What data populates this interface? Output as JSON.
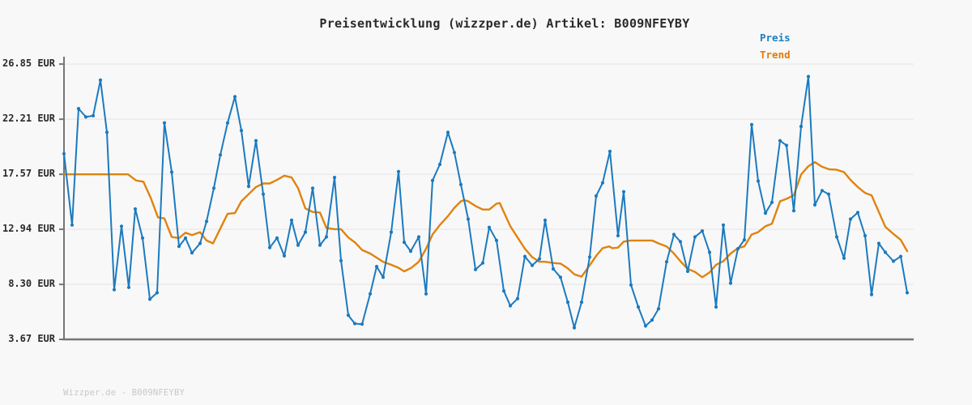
{
  "title": "Preisentwicklung (wizzper.de) Artikel: B009NFEYBY",
  "legend": [
    {
      "label": "Preis",
      "color": "#1b7ec3"
    },
    {
      "label": "Trend",
      "color": "#e07c00"
    }
  ],
  "footer": "Wizzper.de - B009NFEYBY",
  "colors": {
    "background": "#f8f8f8",
    "grid": "#e4e4e4",
    "axis": "#757575",
    "price_line": "#1b7abf",
    "trend_line": "#e0830e",
    "text": "#2a2a2a",
    "footer_text": "#c8c8c8"
  },
  "chart_data": {
    "type": "line",
    "title": "Preisentwicklung (wizzper.de) Artikel: B009NFEYBY",
    "xlabel": "",
    "ylabel": "EUR",
    "ylim": [
      3.67,
      26.85
    ],
    "grid": "horizontal",
    "legend_position": "top-right",
    "x_axis_tick_labels": "none",
    "y_ticks": [
      {
        "value": 26.85,
        "label": "26.85 EUR"
      },
      {
        "value": 22.21,
        "label": "22.21 EUR"
      },
      {
        "value": 17.57,
        "label": "17.57 EUR"
      },
      {
        "value": 12.94,
        "label": "12.94 EUR"
      },
      {
        "value": 8.3,
        "label": "8.30 EUR"
      },
      {
        "value": 3.67,
        "label": "3.67 EUR"
      }
    ],
    "series": [
      {
        "name": "Trend",
        "unit": "EUR",
        "markers": false,
        "points": [
          [
            79,
            17.57
          ],
          [
            140,
            17.57
          ],
          [
            158,
            17.57
          ],
          [
            168,
            17.05
          ],
          [
            177,
            16.95
          ],
          [
            186,
            15.6
          ],
          [
            195,
            13.95
          ],
          [
            203,
            13.85
          ],
          [
            212,
            12.3
          ],
          [
            221,
            12.2
          ],
          [
            229,
            12.65
          ],
          [
            237,
            12.45
          ],
          [
            247,
            12.7
          ],
          [
            255,
            12.0
          ],
          [
            263,
            11.75
          ],
          [
            272,
            13.0
          ],
          [
            281,
            14.25
          ],
          [
            290,
            14.3
          ],
          [
            298,
            15.3
          ],
          [
            307,
            15.9
          ],
          [
            316,
            16.5
          ],
          [
            325,
            16.8
          ],
          [
            333,
            16.8
          ],
          [
            342,
            17.1
          ],
          [
            351,
            17.45
          ],
          [
            360,
            17.3
          ],
          [
            368,
            16.4
          ],
          [
            377,
            14.7
          ],
          [
            386,
            14.4
          ],
          [
            395,
            14.35
          ],
          [
            403,
            13.05
          ],
          [
            413,
            12.95
          ],
          [
            421,
            12.95
          ],
          [
            430,
            12.25
          ],
          [
            438,
            11.85
          ],
          [
            447,
            11.2
          ],
          [
            457,
            10.9
          ],
          [
            465,
            10.55
          ],
          [
            473,
            10.2
          ],
          [
            483,
            9.95
          ],
          [
            492,
            9.7
          ],
          [
            499,
            9.4
          ],
          [
            508,
            9.7
          ],
          [
            517,
            10.2
          ],
          [
            526,
            11.3
          ],
          [
            534,
            12.5
          ],
          [
            543,
            13.3
          ],
          [
            553,
            14.05
          ],
          [
            561,
            14.75
          ],
          [
            569,
            15.3
          ],
          [
            573,
            15.4
          ],
          [
            578,
            15.3
          ],
          [
            587,
            14.9
          ],
          [
            596,
            14.6
          ],
          [
            604,
            14.6
          ],
          [
            613,
            15.1
          ],
          [
            617,
            15.15
          ],
          [
            622,
            14.4
          ],
          [
            630,
            13.2
          ],
          [
            639,
            12.25
          ],
          [
            648,
            11.3
          ],
          [
            657,
            10.6
          ],
          [
            666,
            10.2
          ],
          [
            673,
            10.2
          ],
          [
            683,
            10.1
          ],
          [
            692,
            10.05
          ],
          [
            701,
            9.65
          ],
          [
            709,
            9.15
          ],
          [
            718,
            8.95
          ],
          [
            728,
            9.9
          ],
          [
            736,
            10.7
          ],
          [
            744,
            11.35
          ],
          [
            752,
            11.5
          ],
          [
            756,
            11.35
          ],
          [
            763,
            11.4
          ],
          [
            770,
            11.9
          ],
          [
            779,
            12.0
          ],
          [
            805,
            12.0
          ],
          [
            813,
            11.75
          ],
          [
            823,
            11.5
          ],
          [
            832,
            10.9
          ],
          [
            840,
            10.25
          ],
          [
            849,
            9.6
          ],
          [
            858,
            9.35
          ],
          [
            867,
            8.9
          ],
          [
            876,
            9.3
          ],
          [
            884,
            9.95
          ],
          [
            893,
            10.25
          ],
          [
            902,
            10.9
          ],
          [
            911,
            11.35
          ],
          [
            919,
            11.5
          ],
          [
            928,
            12.5
          ],
          [
            936,
            12.7
          ],
          [
            945,
            13.2
          ],
          [
            953,
            13.4
          ],
          [
            963,
            15.3
          ],
          [
            971,
            15.5
          ],
          [
            980,
            15.8
          ],
          [
            989,
            17.55
          ],
          [
            998,
            18.25
          ],
          [
            1006,
            18.6
          ],
          [
            1015,
            18.2
          ],
          [
            1023,
            18.0
          ],
          [
            1033,
            17.95
          ],
          [
            1042,
            17.75
          ],
          [
            1050,
            17.1
          ],
          [
            1059,
            16.5
          ],
          [
            1068,
            16.0
          ],
          [
            1076,
            15.8
          ],
          [
            1085,
            14.4
          ],
          [
            1093,
            13.15
          ],
          [
            1103,
            12.55
          ],
          [
            1112,
            12.05
          ],
          [
            1120,
            11.1
          ]
        ]
      },
      {
        "name": "Preis",
        "unit": "EUR",
        "markers": true,
        "points": [
          [
            79,
            19.3
          ],
          [
            89,
            13.3
          ],
          [
            97,
            23.1
          ],
          [
            106,
            22.4
          ],
          [
            115,
            22.5
          ],
          [
            124,
            25.5
          ],
          [
            132,
            21.1
          ],
          [
            141,
            7.85
          ],
          [
            150,
            13.2
          ],
          [
            159,
            8.05
          ],
          [
            167,
            14.65
          ],
          [
            176,
            12.2
          ],
          [
            185,
            7.05
          ],
          [
            194,
            7.6
          ],
          [
            203,
            21.9
          ],
          [
            212,
            17.75
          ],
          [
            221,
            11.5
          ],
          [
            229,
            12.2
          ],
          [
            237,
            10.95
          ],
          [
            247,
            11.75
          ],
          [
            255,
            13.6
          ],
          [
            264,
            16.4
          ],
          [
            272,
            19.2
          ],
          [
            281,
            21.9
          ],
          [
            290,
            24.1
          ],
          [
            298,
            21.25
          ],
          [
            307,
            16.55
          ],
          [
            316,
            20.4
          ],
          [
            325,
            15.9
          ],
          [
            333,
            11.4
          ],
          [
            342,
            12.2
          ],
          [
            351,
            10.7
          ],
          [
            360,
            13.7
          ],
          [
            368,
            11.6
          ],
          [
            377,
            12.7
          ],
          [
            386,
            16.4
          ],
          [
            395,
            11.6
          ],
          [
            403,
            12.3
          ],
          [
            413,
            17.3
          ],
          [
            421,
            10.3
          ],
          [
            430,
            5.7
          ],
          [
            438,
            5.0
          ],
          [
            447,
            4.95
          ],
          [
            457,
            7.5
          ],
          [
            465,
            9.8
          ],
          [
            473,
            8.9
          ],
          [
            483,
            12.7
          ],
          [
            492,
            17.8
          ],
          [
            499,
            11.85
          ],
          [
            507,
            11.1
          ],
          [
            517,
            12.3
          ],
          [
            526,
            7.5
          ],
          [
            534,
            17.05
          ],
          [
            543,
            18.4
          ],
          [
            553,
            21.1
          ],
          [
            561,
            19.4
          ],
          [
            569,
            16.7
          ],
          [
            578,
            13.8
          ],
          [
            587,
            9.55
          ],
          [
            596,
            10.1
          ],
          [
            604,
            13.1
          ],
          [
            613,
            12.0
          ],
          [
            622,
            7.75
          ],
          [
            630,
            6.5
          ],
          [
            639,
            7.1
          ],
          [
            648,
            10.65
          ],
          [
            657,
            9.9
          ],
          [
            666,
            10.45
          ],
          [
            673,
            13.7
          ],
          [
            683,
            9.6
          ],
          [
            692,
            8.9
          ],
          [
            701,
            6.8
          ],
          [
            709,
            4.65
          ],
          [
            718,
            6.8
          ],
          [
            728,
            10.6
          ],
          [
            736,
            15.75
          ],
          [
            744,
            16.85
          ],
          [
            753,
            19.5
          ],
          [
            763,
            12.4
          ],
          [
            770,
            16.1
          ],
          [
            779,
            8.25
          ],
          [
            788,
            6.4
          ],
          [
            797,
            4.8
          ],
          [
            805,
            5.3
          ],
          [
            813,
            6.25
          ],
          [
            823,
            10.2
          ],
          [
            832,
            12.5
          ],
          [
            840,
            11.9
          ],
          [
            849,
            9.4
          ],
          [
            858,
            12.3
          ],
          [
            867,
            12.8
          ],
          [
            876,
            11.0
          ],
          [
            884,
            6.4
          ],
          [
            893,
            13.3
          ],
          [
            902,
            8.4
          ],
          [
            911,
            11.3
          ],
          [
            919,
            12.05
          ],
          [
            928,
            21.75
          ],
          [
            936,
            17.0
          ],
          [
            945,
            14.3
          ],
          [
            953,
            15.2
          ],
          [
            963,
            20.4
          ],
          [
            971,
            20.0
          ],
          [
            980,
            14.5
          ],
          [
            989,
            21.6
          ],
          [
            998,
            25.8
          ],
          [
            1006,
            15.0
          ],
          [
            1015,
            16.2
          ],
          [
            1023,
            15.9
          ],
          [
            1033,
            12.3
          ],
          [
            1042,
            10.5
          ],
          [
            1050,
            13.8
          ],
          [
            1059,
            14.35
          ],
          [
            1068,
            12.4
          ],
          [
            1076,
            7.45
          ],
          [
            1085,
            11.75
          ],
          [
            1093,
            11.0
          ],
          [
            1103,
            10.25
          ],
          [
            1112,
            10.65
          ],
          [
            1120,
            7.6
          ]
        ]
      }
    ]
  }
}
